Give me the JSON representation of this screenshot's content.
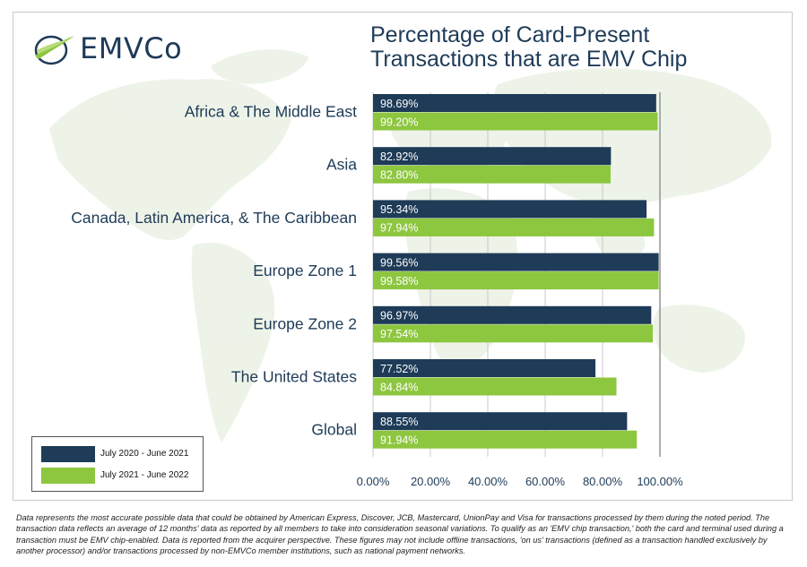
{
  "brand": {
    "name": "EMVCo",
    "navy": "#1e3b57",
    "green": "#8dc63f"
  },
  "title_lines": [
    "Percentage of Card-Present",
    "Transactions that are EMV Chip"
  ],
  "chart_data": {
    "type": "bar",
    "orientation": "horizontal",
    "title": "Percentage of Card-Present Transactions that are EMV Chip",
    "categories": [
      "Africa & The Middle East",
      "Asia",
      "Canada, Latin America, & The Caribbean",
      "Europe Zone 1",
      "Europe Zone 2",
      "The United States",
      "Global"
    ],
    "series": [
      {
        "name": "July 2020 - June 2021",
        "color": "#1e3b57",
        "values": [
          98.69,
          82.92,
          95.34,
          99.56,
          96.97,
          77.52,
          88.55
        ],
        "labels": [
          "98.69%",
          "82.92%",
          "95.34%",
          "99.56%",
          "96.97%",
          "77.52%",
          "88.55%"
        ]
      },
      {
        "name": "July 2021 - June 2022",
        "color": "#8dc63f",
        "values": [
          99.2,
          82.8,
          97.94,
          99.58,
          97.54,
          84.84,
          91.94
        ],
        "labels": [
          "99.20%",
          "82.80%",
          "97.94%",
          "99.58%",
          "97.54%",
          "84.84%",
          "91.94%"
        ]
      }
    ],
    "xlim": [
      0,
      100
    ],
    "xticks": [
      "0.00%",
      "20.00%",
      "40.00%",
      "60.00%",
      "80.00%",
      "100.00%"
    ],
    "grid": true,
    "legend_position": "bottom-left"
  },
  "footnote": "Data represents the most accurate possible data that could be obtained by American Express, Discover, JCB, Mastercard, UnionPay and Visa for transactions processed by them during the noted period. The transaction data reflects an average of 12 months' data as reported by all members to take into consideration seasonal variations. To qualify as an 'EMV chip transaction,' both the card and terminal used during a transaction must be EMV chip-enabled. Data is reported from the acquirer perspective. These figures may not include offline transactions, 'on us' transactions (defined as a transaction handled exclusively by another processor) and/or transactions processed by non-EMVCo member institutions, such as national payment networks."
}
